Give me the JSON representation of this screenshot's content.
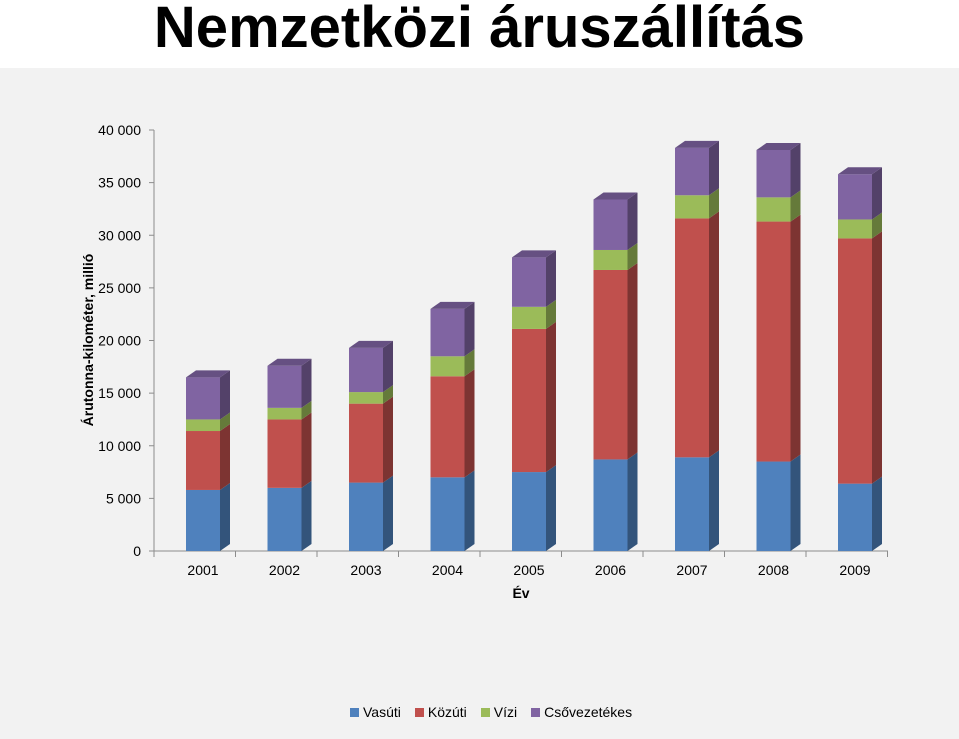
{
  "title": "Nemzetközi áruszállítás",
  "chart_data": {
    "type": "bar",
    "stacked": true,
    "three_d": true,
    "categories": [
      "2001",
      "2002",
      "2003",
      "2004",
      "2005",
      "2006",
      "2007",
      "2008",
      "2009"
    ],
    "series": [
      {
        "name": "Vasúti",
        "color": "#4f81bd",
        "values": [
          5800,
          6000,
          6500,
          7000,
          7500,
          8700,
          8900,
          8500,
          6400
        ]
      },
      {
        "name": "Közúti",
        "color": "#c0504d",
        "values": [
          5600,
          6500,
          7500,
          9600,
          13600,
          18000,
          22700,
          22800,
          23300
        ]
      },
      {
        "name": "Vízi",
        "color": "#9bbb59",
        "values": [
          1100,
          1100,
          1100,
          1900,
          2100,
          1900,
          2200,
          2300,
          1800
        ]
      },
      {
        "name": "Csővezetékes",
        "color": "#8064a2",
        "values": [
          4000,
          4000,
          4200,
          4500,
          4700,
          4800,
          4500,
          4500,
          4300
        ]
      }
    ],
    "xlabel": "Év",
    "ylabel": "Árutonna-kilométer, millió",
    "ylim": [
      0,
      40000
    ],
    "yticks": [
      0,
      5000,
      10000,
      15000,
      20000,
      25000,
      30000,
      35000,
      40000
    ],
    "ytick_labels": [
      "0",
      "5 000",
      "10 000",
      "15 000",
      "20 000",
      "25 000",
      "30 000",
      "35 000",
      "40 000"
    ],
    "legend_position": "bottom",
    "grid": false
  }
}
